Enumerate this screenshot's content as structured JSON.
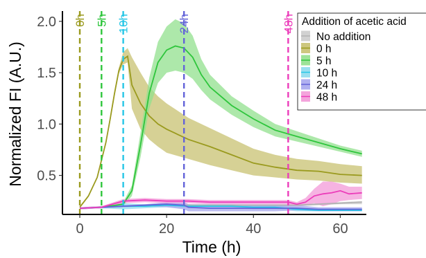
{
  "chart_data": {
    "type": "line",
    "title": "",
    "xlabel": "Time (h)",
    "ylabel": "Normalized FI (A.U.)",
    "xlim": [
      -4,
      66
    ],
    "ylim": [
      0.12,
      2.1
    ],
    "x_ticks": [
      0,
      20,
      40,
      60
    ],
    "y_ticks": [
      0.5,
      1.0,
      1.5,
      2.0
    ],
    "x_tick_labels": [
      "0",
      "20",
      "40",
      "60"
    ],
    "y_tick_labels": [
      "0.5",
      "1.0",
      "1.5",
      "2.0"
    ],
    "grid": false,
    "legend": {
      "title": "Addition of acetic acid",
      "position": "right",
      "entries": [
        "No addition",
        "0 h",
        "5 h",
        "10 h",
        "24 h",
        "48 h"
      ]
    },
    "vlines": [
      {
        "x": 0,
        "label": "0h",
        "color": "#9a9a1e"
      },
      {
        "x": 5,
        "label": "5h",
        "color": "#2ec53c"
      },
      {
        "x": 10,
        "label": "10h",
        "color": "#25c6e6"
      },
      {
        "x": 24,
        "label": "24h",
        "color": "#6363d9"
      },
      {
        "x": 48,
        "label": "48h",
        "color": "#ec3cba"
      }
    ],
    "series": [
      {
        "name": "No addition",
        "color": "#b3b3b3",
        "fill": "#cccccc",
        "x": [
          0,
          5,
          10,
          15,
          20,
          25,
          30,
          35,
          40,
          45,
          50,
          55,
          60,
          65
        ],
        "y": [
          0.18,
          0.19,
          0.2,
          0.2,
          0.21,
          0.21,
          0.21,
          0.21,
          0.21,
          0.21,
          0.21,
          0.22,
          0.23,
          0.24
        ],
        "lower": [
          0.17,
          0.18,
          0.19,
          0.19,
          0.2,
          0.2,
          0.2,
          0.2,
          0.2,
          0.2,
          0.2,
          0.21,
          0.22,
          0.22
        ],
        "upper": [
          0.19,
          0.2,
          0.21,
          0.21,
          0.22,
          0.22,
          0.22,
          0.22,
          0.22,
          0.22,
          0.22,
          0.23,
          0.24,
          0.25
        ]
      },
      {
        "name": "0 h",
        "color": "#9a9a1e",
        "fill": "#c8c171",
        "x": [
          0,
          2,
          4,
          6,
          7,
          8,
          9,
          10,
          11,
          12,
          14,
          16,
          18,
          20,
          25,
          30,
          35,
          40,
          45,
          50,
          55,
          60,
          65
        ],
        "y": [
          0.19,
          0.3,
          0.48,
          0.82,
          1.05,
          1.3,
          1.52,
          1.63,
          1.66,
          1.38,
          1.2,
          1.08,
          1.0,
          0.95,
          0.85,
          0.78,
          0.7,
          0.62,
          0.58,
          0.55,
          0.54,
          0.51,
          0.5
        ],
        "lower": [
          0.18,
          0.29,
          0.47,
          0.8,
          1.02,
          1.27,
          1.49,
          1.58,
          1.6,
          1.15,
          0.95,
          0.85,
          0.78,
          0.72,
          0.66,
          0.6,
          0.55,
          0.5,
          0.48,
          0.46,
          0.45,
          0.43,
          0.42
        ],
        "upper": [
          0.2,
          0.31,
          0.49,
          0.84,
          1.08,
          1.33,
          1.55,
          1.7,
          1.74,
          1.65,
          1.5,
          1.36,
          1.27,
          1.2,
          1.06,
          0.96,
          0.86,
          0.76,
          0.7,
          0.66,
          0.64,
          0.61,
          0.59
        ]
      },
      {
        "name": "5 h",
        "color": "#2ec53c",
        "fill": "#92e08d",
        "x": [
          5,
          10,
          12,
          14,
          16,
          18,
          20,
          22,
          24,
          26,
          28,
          30,
          35,
          40,
          45,
          50,
          55,
          60,
          65
        ],
        "y": [
          0.19,
          0.22,
          0.35,
          0.8,
          1.3,
          1.6,
          1.72,
          1.76,
          1.74,
          1.65,
          1.48,
          1.36,
          1.18,
          1.05,
          0.94,
          0.88,
          0.82,
          0.76,
          0.71
        ],
        "lower": [
          0.18,
          0.2,
          0.3,
          0.68,
          1.15,
          1.4,
          1.5,
          1.52,
          1.5,
          1.44,
          1.33,
          1.24,
          1.09,
          0.97,
          0.88,
          0.83,
          0.78,
          0.73,
          0.68
        ],
        "upper": [
          0.2,
          0.24,
          0.4,
          0.92,
          1.45,
          1.8,
          1.95,
          2.02,
          1.98,
          1.86,
          1.63,
          1.48,
          1.27,
          1.13,
          1.0,
          0.93,
          0.86,
          0.79,
          0.74
        ]
      },
      {
        "name": "10 h",
        "color": "#25c6e6",
        "fill": "#8fdcee",
        "x": [
          0,
          5,
          10,
          15,
          20,
          25,
          30,
          35,
          40,
          45,
          50,
          55,
          60,
          65
        ],
        "y": [
          0.18,
          0.19,
          0.2,
          0.2,
          0.21,
          0.2,
          0.2,
          0.2,
          0.19,
          0.19,
          0.17,
          0.16,
          0.16,
          0.16
        ],
        "lower": [
          0.17,
          0.18,
          0.17,
          0.18,
          0.19,
          0.18,
          0.18,
          0.18,
          0.17,
          0.17,
          0.15,
          0.15,
          0.15,
          0.15
        ],
        "upper": [
          0.19,
          0.2,
          0.23,
          0.22,
          0.23,
          0.22,
          0.22,
          0.22,
          0.21,
          0.21,
          0.19,
          0.18,
          0.18,
          0.18
        ]
      },
      {
        "name": "24 h",
        "color": "#6363d9",
        "fill": "#a7a7ee",
        "x": [
          0,
          5,
          10,
          15,
          20,
          24,
          25,
          30,
          35,
          40,
          45,
          50,
          55,
          60,
          65
        ],
        "y": [
          0.18,
          0.19,
          0.2,
          0.21,
          0.22,
          0.21,
          0.19,
          0.18,
          0.18,
          0.18,
          0.18,
          0.18,
          0.17,
          0.17,
          0.17
        ],
        "lower": [
          0.17,
          0.18,
          0.19,
          0.2,
          0.19,
          0.17,
          0.15,
          0.15,
          0.15,
          0.15,
          0.15,
          0.16,
          0.15,
          0.15,
          0.15
        ],
        "upper": [
          0.19,
          0.2,
          0.21,
          0.22,
          0.24,
          0.24,
          0.22,
          0.21,
          0.21,
          0.21,
          0.21,
          0.21,
          0.19,
          0.19,
          0.19
        ]
      },
      {
        "name": "48 h",
        "color": "#ec3cba",
        "fill": "#f39ad8",
        "x": [
          0,
          5,
          10,
          15,
          20,
          25,
          30,
          35,
          40,
          45,
          48,
          50,
          52,
          54,
          56,
          58,
          60,
          62,
          65
        ],
        "y": [
          0.18,
          0.19,
          0.25,
          0.26,
          0.25,
          0.25,
          0.24,
          0.24,
          0.24,
          0.24,
          0.24,
          0.22,
          0.24,
          0.3,
          0.32,
          0.33,
          0.35,
          0.32,
          0.33
        ],
        "lower": [
          0.17,
          0.18,
          0.23,
          0.24,
          0.23,
          0.23,
          0.22,
          0.22,
          0.22,
          0.22,
          0.22,
          0.2,
          0.21,
          0.23,
          0.2,
          0.22,
          0.25,
          0.26,
          0.27
        ],
        "upper": [
          0.19,
          0.2,
          0.27,
          0.28,
          0.27,
          0.27,
          0.26,
          0.26,
          0.26,
          0.26,
          0.26,
          0.24,
          0.28,
          0.37,
          0.44,
          0.44,
          0.42,
          0.39,
          0.39
        ]
      }
    ]
  }
}
